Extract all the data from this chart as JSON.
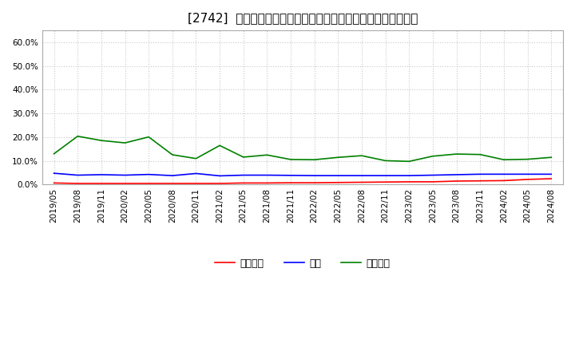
{
  "title": "[2742]  売上債権、在庫、買入債務の総資産に対する比率の推移",
  "x_labels": [
    "2019/05",
    "2019/08",
    "2019/11",
    "2020/02",
    "2020/05",
    "2020/08",
    "2020/11",
    "2021/02",
    "2021/05",
    "2021/08",
    "2021/11",
    "2022/02",
    "2022/05",
    "2022/08",
    "2022/11",
    "2023/02",
    "2023/05",
    "2023/08",
    "2023/11",
    "2024/02",
    "2024/05",
    "2024/08"
  ],
  "receivables": [
    0.007,
    0.005,
    0.005,
    0.005,
    0.005,
    0.005,
    0.005,
    0.005,
    0.007,
    0.007,
    0.008,
    0.008,
    0.009,
    0.01,
    0.011,
    0.012,
    0.012,
    0.015,
    0.016,
    0.017,
    0.022,
    0.025
  ],
  "inventory": [
    0.048,
    0.04,
    0.042,
    0.04,
    0.043,
    0.038,
    0.047,
    0.037,
    0.04,
    0.04,
    0.039,
    0.038,
    0.038,
    0.038,
    0.038,
    0.038,
    0.04,
    0.042,
    0.044,
    0.044,
    0.044,
    0.044
  ],
  "payables": [
    0.13,
    0.204,
    0.186,
    0.176,
    0.201,
    0.126,
    0.11,
    0.165,
    0.116,
    0.125,
    0.106,
    0.105,
    0.115,
    0.122,
    0.101,
    0.098,
    0.12,
    0.129,
    0.127,
    0.105,
    0.107,
    0.115
  ],
  "receivables_color": "#ff0000",
  "inventory_color": "#0000ff",
  "payables_color": "#008000",
  "legend_receivables": "売上債権",
  "legend_inventory": "在庫",
  "legend_payables": "買入債務",
  "ylim": [
    0.0,
    0.65
  ],
  "yticks": [
    0.0,
    0.1,
    0.2,
    0.3,
    0.4,
    0.5,
    0.6
  ],
  "background_color": "#ffffff",
  "grid_color": "#c8c8c8",
  "title_fontsize": 11,
  "axis_fontsize": 7.5,
  "legend_fontsize": 9
}
